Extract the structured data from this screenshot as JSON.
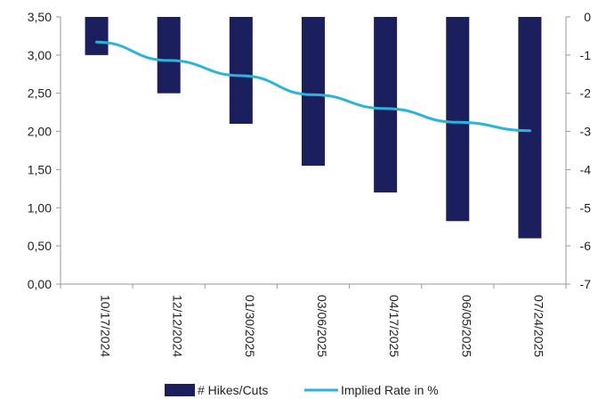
{
  "chart_data": {
    "type": "bar",
    "categories": [
      "10/17/2024",
      "12/12/2024",
      "01/30/2025",
      "03/06/2025",
      "04/17/2025",
      "06/05/2025",
      "07/24/2025"
    ],
    "series": [
      {
        "name": "# Hikes/Cuts",
        "type": "bar",
        "axis": "right",
        "color": "#1b1f5e",
        "values": [
          -1.0,
          -2.0,
          -2.8,
          -3.9,
          -4.6,
          -5.35,
          -5.8
        ]
      },
      {
        "name": "Implied Rate in %",
        "type": "line",
        "axis": "left",
        "color": "#2bb4d9",
        "values": [
          3.17,
          2.93,
          2.73,
          2.48,
          2.3,
          2.12,
          2.01
        ]
      }
    ],
    "left_axis": {
      "ylim": [
        0,
        3.5
      ],
      "ticks": [
        "0,00",
        "0,50",
        "1,00",
        "1,50",
        "2,00",
        "2,50",
        "3,00",
        "3,50"
      ]
    },
    "right_axis": {
      "ylim": [
        -7,
        0
      ],
      "ticks": [
        "-7",
        "-6",
        "-5",
        "-4",
        "-3",
        "-2",
        "-1",
        "0"
      ]
    },
    "title": "",
    "xlabel": "",
    "ylabel": "",
    "legend_position": "bottom",
    "grid": false
  }
}
